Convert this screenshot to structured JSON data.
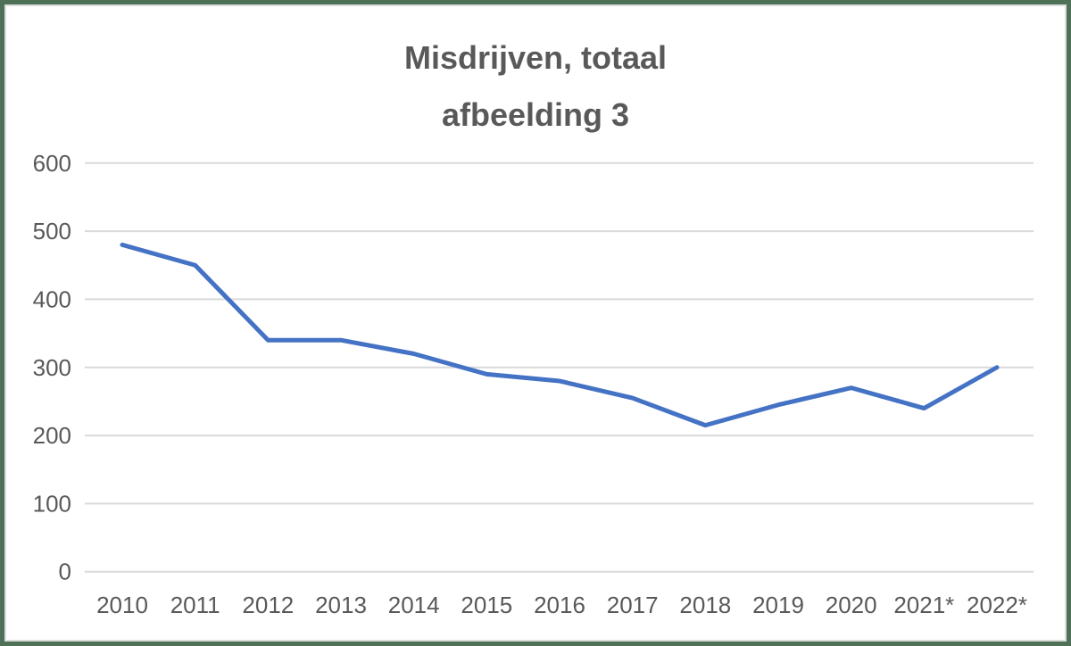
{
  "frame": {
    "border_color": "#4e7158",
    "inner_outline_color": "#dbdddb",
    "background": "#ffffff"
  },
  "chart_data": {
    "type": "line",
    "title": "Misdrijven, totaal",
    "subtitle": "afbeelding 3",
    "categories": [
      "2010",
      "2011",
      "2012",
      "2013",
      "2014",
      "2015",
      "2016",
      "2017",
      "2018",
      "2019",
      "2020",
      "2021*",
      "2022*"
    ],
    "series": [
      {
        "name": "Misdrijven, totaal",
        "values": [
          480,
          450,
          340,
          340,
          320,
          290,
          280,
          255,
          215,
          245,
          270,
          240,
          300
        ],
        "color": "#4472c4"
      }
    ],
    "xlabel": "",
    "ylabel": "",
    "ylim": [
      0,
      600
    ],
    "yticks": [
      0,
      100,
      200,
      300,
      400,
      500,
      600
    ],
    "grid": true,
    "gridline_color": "#d9d9d9",
    "axis_label_color": "#595959",
    "title_color": "#595959",
    "legend_position": "none"
  }
}
